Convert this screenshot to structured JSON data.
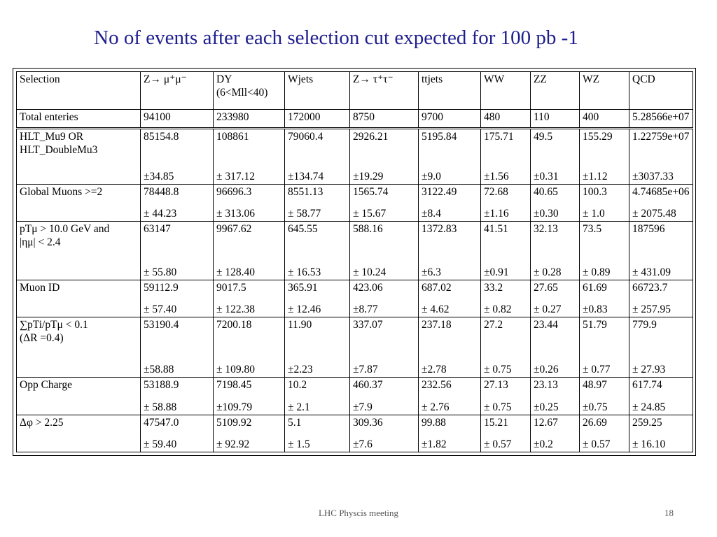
{
  "title": "No of events after each selection cut expected for 100 pb -1",
  "footer": {
    "text": "LHC Physcis meeting",
    "page": "18"
  },
  "table": {
    "header": {
      "selection": "Selection",
      "columns": [
        "Z→ μ⁺μ⁻",
        "DY (6<Mll<40)",
        "Wjets",
        "Z→ τ⁺τ⁻",
        "ttjets",
        "WW",
        "ZZ",
        "WZ",
        "QCD"
      ]
    },
    "total": {
      "label": "Total enteries",
      "values": [
        "94100",
        "233980",
        "172000",
        "8750",
        "9700",
        "480",
        "110",
        "400",
        "5.28566e+07"
      ]
    },
    "rows": [
      {
        "label_lines": [
          "HLT_Mu9          OR",
          "HLT_DoubleMu3"
        ],
        "values": [
          "85154.8",
          "108861",
          "79060.4",
          "2926.21",
          "5195.84",
          "175.71",
          "49.5",
          "155.29",
          "1.22759e+07"
        ],
        "errors": [
          "±34.85",
          "± 317.12",
          "±134.74",
          "±19.29",
          "±9.0",
          "±1.56",
          "±0.31",
          "±1.12",
          "±3037.33"
        ]
      },
      {
        "label_lines": [
          "Global Muons >=2"
        ],
        "values": [
          "78448.8",
          "96696.3",
          "8551.13",
          "1565.74",
          "3122.49",
          "72.68",
          "40.65",
          "100.3",
          "4.74685e+06"
        ],
        "errors": [
          "± 44.23",
          "± 313.06",
          "± 58.77",
          "± 15.67",
          "±8.4",
          "±1.16",
          "±0.30",
          "± 1.0",
          "± 2075.48"
        ]
      },
      {
        "label_lines": [
          "pTμ  >  10.0  GeV  and",
          "|ημ| < 2.4"
        ],
        "values": [
          "63147",
          "9967.62",
          "645.55",
          "588.16",
          "1372.83",
          "41.51",
          "32.13",
          "73.5",
          "187596"
        ],
        "errors": [
          "± 55.80",
          "± 128.40",
          "± 16.53",
          "± 10.24",
          "±6.3",
          "±0.91",
          "± 0.28",
          "± 0.89",
          "± 431.09"
        ]
      },
      {
        "label_lines": [
          "Muon ID"
        ],
        "values": [
          "59112.9",
          "9017.5",
          "365.91",
          "423.06",
          "687.02",
          "33.2",
          "27.65",
          "61.69",
          "66723.7"
        ],
        "errors": [
          "± 57.40",
          "± 122.38",
          "± 12.46",
          "±8.77",
          "± 4.62",
          "± 0.82",
          "± 0.27",
          "±0.83",
          "± 257.95"
        ]
      },
      {
        "label_lines": [
          "∑pTi/pTμ    <   0.1",
          "(ΔR =0.4)"
        ],
        "values": [
          "53190.4",
          "7200.18",
          "11.90",
          "337.07",
          "237.18",
          "27.2",
          "23.44",
          "51.79",
          "779.9"
        ],
        "errors": [
          "±58.88",
          "± 109.80",
          "±2.23",
          "±7.87",
          "±2.78",
          "± 0.75",
          "±0.26",
          "± 0.77",
          "± 27.93"
        ]
      },
      {
        "label_lines": [
          "Opp Charge"
        ],
        "values": [
          "53188.9",
          "7198.45",
          "10.2",
          "460.37",
          "232.56",
          "27.13",
          "23.13",
          "48.97",
          "617.74"
        ],
        "errors": [
          "± 58.88",
          "±109.79",
          "± 2.1",
          "±7.9",
          "± 2.76",
          "± 0.75",
          "±0.25",
          "±0.75",
          "± 24.85"
        ]
      },
      {
        "label_lines": [
          "Δφ > 2.25"
        ],
        "values": [
          "47547.0",
          "5109.92",
          "5.1",
          "309.36",
          "99.88",
          "15.21",
          "12.67",
          "26.69",
          "259.25"
        ],
        "errors": [
          "± 59.40",
          "± 92.92",
          "± 1.5",
          "±7.6",
          "±1.82",
          "± 0.57",
          "±0.2",
          "± 0.57",
          "± 16.10"
        ]
      }
    ]
  }
}
